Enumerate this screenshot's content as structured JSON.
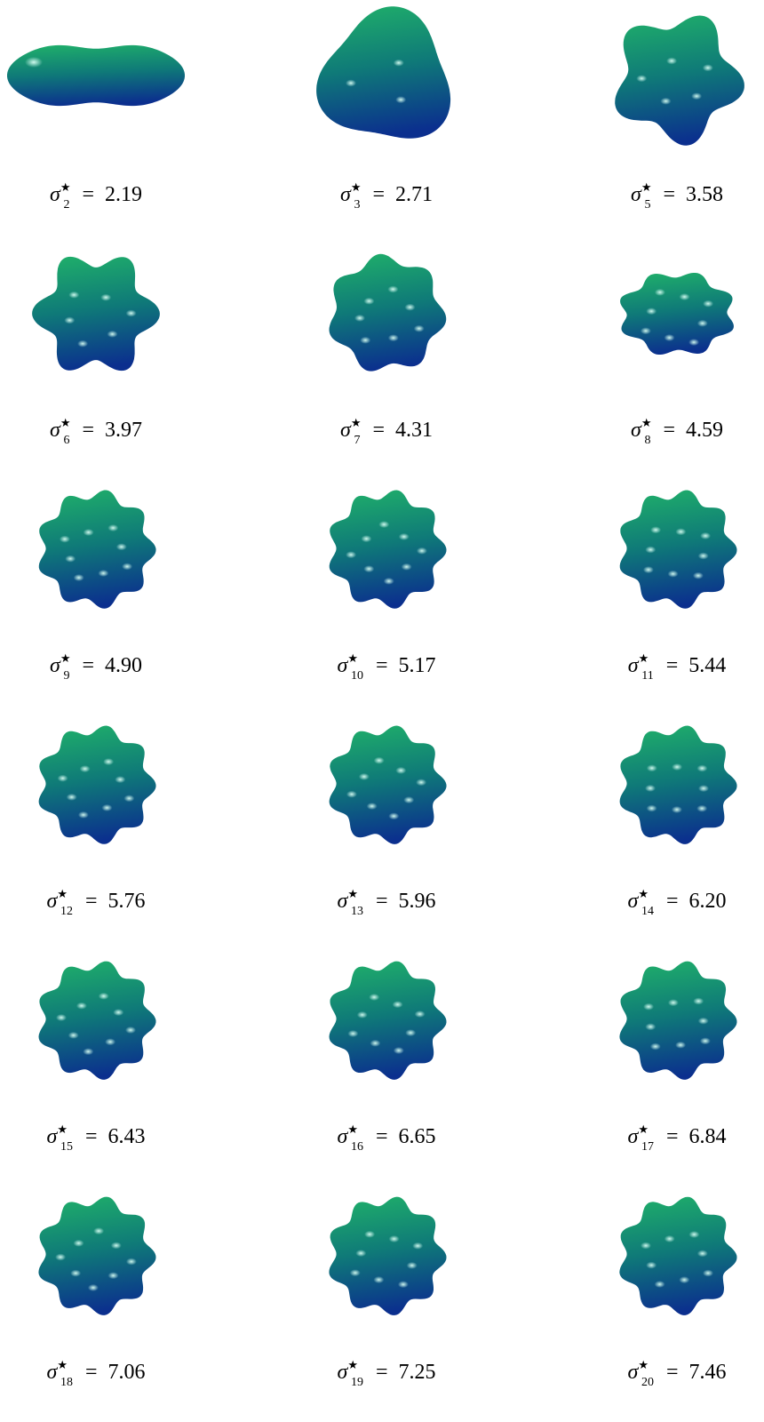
{
  "figure": {
    "accent_colors": {
      "top": "#1fae6a",
      "mid": "#0f7a78",
      "bottom": "#0b2f8e",
      "highlight": "#d8fff4"
    },
    "items": [
      {
        "subscript": "2",
        "value": "2.19",
        "lobes": 2
      },
      {
        "subscript": "3",
        "value": "2.71",
        "lobes": 3
      },
      {
        "subscript": "5",
        "value": "3.58",
        "lobes": 5
      },
      {
        "subscript": "6",
        "value": "3.97",
        "lobes": 6
      },
      {
        "subscript": "7",
        "value": "4.31",
        "lobes": 7
      },
      {
        "subscript": "8",
        "value": "4.59",
        "lobes": 8
      },
      {
        "subscript": "9",
        "value": "4.90",
        "lobes": 9
      },
      {
        "subscript": "10",
        "value": "5.17",
        "lobes": 10
      },
      {
        "subscript": "11",
        "value": "5.44",
        "lobes": 11
      },
      {
        "subscript": "12",
        "value": "5.76",
        "lobes": 12
      },
      {
        "subscript": "13",
        "value": "5.96",
        "lobes": 13
      },
      {
        "subscript": "14",
        "value": "6.20",
        "lobes": 14
      },
      {
        "subscript": "15",
        "value": "6.43",
        "lobes": 15
      },
      {
        "subscript": "16",
        "value": "6.65",
        "lobes": 16
      },
      {
        "subscript": "17",
        "value": "6.84",
        "lobes": 17
      },
      {
        "subscript": "18",
        "value": "7.06",
        "lobes": 18
      },
      {
        "subscript": "19",
        "value": "7.25",
        "lobes": 19
      },
      {
        "subscript": "20",
        "value": "7.46",
        "lobes": 20
      }
    ]
  }
}
